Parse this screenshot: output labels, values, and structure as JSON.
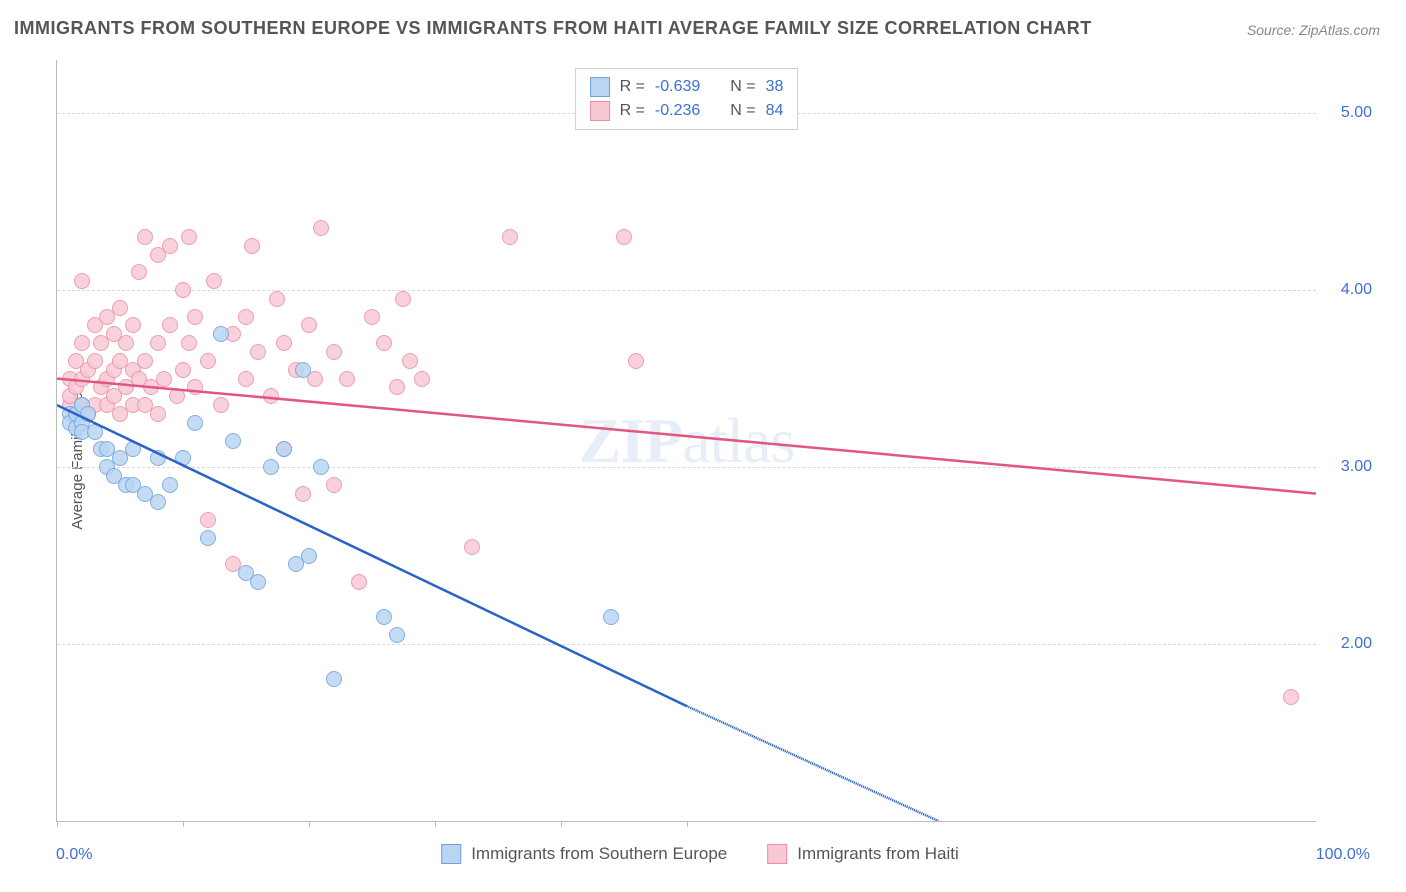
{
  "title": "IMMIGRANTS FROM SOUTHERN EUROPE VS IMMIGRANTS FROM HAITI AVERAGE FAMILY SIZE CORRELATION CHART",
  "source": "Source: ZipAtlas.com",
  "y_axis_label": "Average Family Size",
  "watermark_a": "ZIP",
  "watermark_b": "atlas",
  "chart": {
    "type": "scatter",
    "xlim": [
      0,
      100
    ],
    "ylim": [
      1.0,
      5.3
    ],
    "y_ticks": [
      2.0,
      3.0,
      4.0,
      5.0
    ],
    "y_tick_labels": [
      "2.00",
      "3.00",
      "4.00",
      "5.00"
    ],
    "x_tick_positions": [
      0,
      10,
      20,
      30,
      40,
      50
    ],
    "x_min_label": "0.0%",
    "x_max_label": "100.0%",
    "background_color": "#ffffff",
    "grid_color": "#d8d8d8",
    "axis_color": "#bbbbbb",
    "label_color": "#555555",
    "value_color": "#3d6fd6",
    "marker_radius": 8,
    "marker_opacity": 0.85,
    "trend_line_width": 2.5
  },
  "series": [
    {
      "key": "southern_europe",
      "label": "Immigrants from Southern Europe",
      "fill": "#b9d5f2",
      "stroke": "#6fa2e0",
      "line_color": "#2963c9",
      "R": "-0.639",
      "N": "38",
      "trend": {
        "x1": 0,
        "y1": 3.35,
        "x2": 50,
        "y2": 1.65,
        "dash_x2": 70,
        "dash_y2": 1.0
      },
      "points": [
        [
          1,
          3.3
        ],
        [
          1,
          3.25
        ],
        [
          1.5,
          3.3
        ],
        [
          1.5,
          3.22
        ],
        [
          2,
          3.35
        ],
        [
          2,
          3.25
        ],
        [
          2,
          3.2
        ],
        [
          2.5,
          3.3
        ],
        [
          3,
          3.2
        ],
        [
          3.5,
          3.1
        ],
        [
          4,
          3.0
        ],
        [
          4,
          3.1
        ],
        [
          4.5,
          2.95
        ],
        [
          5,
          3.05
        ],
        [
          5.5,
          2.9
        ],
        [
          6,
          3.1
        ],
        [
          6,
          2.9
        ],
        [
          7,
          2.85
        ],
        [
          8,
          3.05
        ],
        [
          8,
          2.8
        ],
        [
          9,
          2.9
        ],
        [
          10,
          3.05
        ],
        [
          11,
          3.25
        ],
        [
          12,
          2.6
        ],
        [
          13,
          3.75
        ],
        [
          14,
          3.15
        ],
        [
          15,
          2.4
        ],
        [
          16,
          2.35
        ],
        [
          17,
          3.0
        ],
        [
          18,
          3.1
        ],
        [
          19,
          2.45
        ],
        [
          19.5,
          3.55
        ],
        [
          20,
          2.5
        ],
        [
          21,
          3.0
        ],
        [
          22,
          1.8
        ],
        [
          26,
          2.15
        ],
        [
          27,
          2.05
        ],
        [
          44,
          2.15
        ]
      ]
    },
    {
      "key": "haiti",
      "label": "Immigrants from Haiti",
      "fill": "#f8c9d4",
      "stroke": "#eb8fa8",
      "line_color": "#e2577f",
      "R": "-0.236",
      "N": "84",
      "trend": {
        "x1": 0,
        "y1": 3.5,
        "x2": 100,
        "y2": 2.85
      },
      "points": [
        [
          1,
          3.35
        ],
        [
          1,
          3.4
        ],
        [
          1,
          3.5
        ],
        [
          1.5,
          3.3
        ],
        [
          1.5,
          3.45
        ],
        [
          1.5,
          3.6
        ],
        [
          2,
          3.35
        ],
        [
          2,
          3.5
        ],
        [
          2,
          3.7
        ],
        [
          2,
          4.05
        ],
        [
          2.5,
          3.3
        ],
        [
          2.5,
          3.55
        ],
        [
          3,
          3.35
        ],
        [
          3,
          3.6
        ],
        [
          3,
          3.8
        ],
        [
          3.5,
          3.45
        ],
        [
          3.5,
          3.7
        ],
        [
          4,
          3.35
        ],
        [
          4,
          3.5
        ],
        [
          4,
          3.85
        ],
        [
          4.5,
          3.4
        ],
        [
          4.5,
          3.55
        ],
        [
          4.5,
          3.75
        ],
        [
          5,
          3.3
        ],
        [
          5,
          3.6
        ],
        [
          5,
          3.9
        ],
        [
          5.5,
          3.45
        ],
        [
          5.5,
          3.7
        ],
        [
          6,
          3.35
        ],
        [
          6,
          3.55
        ],
        [
          6,
          3.8
        ],
        [
          6.5,
          3.5
        ],
        [
          6.5,
          4.1
        ],
        [
          7,
          3.35
        ],
        [
          7,
          3.6
        ],
        [
          7,
          4.3
        ],
        [
          7.5,
          3.45
        ],
        [
          8,
          3.3
        ],
        [
          8,
          3.7
        ],
        [
          8,
          4.2
        ],
        [
          8.5,
          3.5
        ],
        [
          9,
          3.8
        ],
        [
          9,
          4.25
        ],
        [
          9.5,
          3.4
        ],
        [
          10,
          3.55
        ],
        [
          10,
          4.0
        ],
        [
          10.5,
          3.7
        ],
        [
          10.5,
          4.3
        ],
        [
          11,
          3.45
        ],
        [
          11,
          3.85
        ],
        [
          12,
          2.7
        ],
        [
          12,
          3.6
        ],
        [
          12.5,
          4.05
        ],
        [
          13,
          3.35
        ],
        [
          14,
          3.75
        ],
        [
          14,
          2.45
        ],
        [
          15,
          3.5
        ],
        [
          15,
          3.85
        ],
        [
          15.5,
          4.25
        ],
        [
          16,
          3.65
        ],
        [
          17,
          3.4
        ],
        [
          17.5,
          3.95
        ],
        [
          18,
          3.1
        ],
        [
          18,
          3.7
        ],
        [
          19,
          3.55
        ],
        [
          19.5,
          2.85
        ],
        [
          20,
          3.8
        ],
        [
          20.5,
          3.5
        ],
        [
          21,
          4.35
        ],
        [
          22,
          3.65
        ],
        [
          22,
          2.9
        ],
        [
          23,
          3.5
        ],
        [
          24,
          2.35
        ],
        [
          25,
          3.85
        ],
        [
          26,
          3.7
        ],
        [
          27,
          3.45
        ],
        [
          27.5,
          3.95
        ],
        [
          28,
          3.6
        ],
        [
          29,
          3.5
        ],
        [
          33,
          2.55
        ],
        [
          36,
          4.3
        ],
        [
          45,
          4.3
        ],
        [
          46,
          3.6
        ],
        [
          98,
          1.7
        ]
      ]
    }
  ],
  "legend_top": {
    "r_label": "R =",
    "n_label": "N ="
  }
}
